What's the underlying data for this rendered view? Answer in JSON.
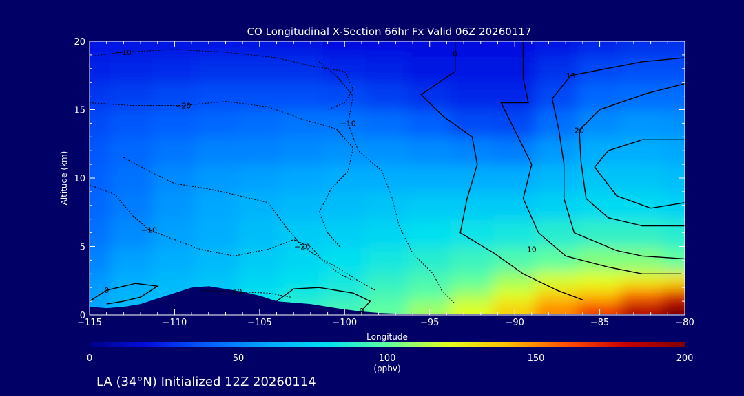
{
  "chart_data": {
    "type": "heatmap",
    "title": "CO Longitudinal X-Section 66hr  Fx Valid 06Z 20260117",
    "footer": "LA (34°N) Initialized 12Z 20260114",
    "xlabel": "Longitude",
    "ylabel": "Altitude (km)",
    "xlim": [
      -115,
      -80
    ],
    "ylim": [
      0,
      20
    ],
    "x_ticks": [
      -115,
      -110,
      -105,
      -100,
      -95,
      -90,
      -85,
      -80
    ],
    "x_tick_labels": [
      "−115",
      "−110",
      "−105",
      "−100",
      "−95",
      "−90",
      "−85",
      "−80"
    ],
    "y_ticks": [
      0,
      5,
      10,
      15,
      20
    ],
    "y_tick_labels": [
      "0",
      "5",
      "10",
      "15",
      "20"
    ],
    "colorbar": {
      "min": 0,
      "max": 200,
      "ticks": [
        0,
        50,
        100,
        150,
        200
      ],
      "tick_labels": [
        "0",
        "50",
        "100",
        "150",
        "200"
      ],
      "unit_label": "(ppbv)",
      "colors": [
        "#000088",
        "#0010e0",
        "#0060ff",
        "#00a8ff",
        "#00e0f0",
        "#60ffa0",
        "#e0ff20",
        "#ffc000",
        "#ff5000",
        "#c80000",
        "#800000"
      ]
    },
    "grid": false,
    "x_columns": [
      -115,
      -112.5,
      -110,
      -107.5,
      -105,
      -102.5,
      -100,
      -97.5,
      -95,
      -92.5,
      -90,
      -87.5,
      -85,
      -82.5,
      -80
    ],
    "y_rows": [
      0.5,
      1.5,
      2.5,
      4,
      6,
      8,
      10,
      12,
      14,
      16,
      18,
      19.8
    ],
    "co_ppbv": [
      [
        60,
        68,
        70,
        72,
        85,
        90,
        95,
        100,
        110,
        120,
        135,
        150,
        165,
        185,
        200
      ],
      [
        58,
        64,
        68,
        72,
        80,
        85,
        88,
        95,
        100,
        110,
        120,
        135,
        140,
        155,
        170
      ],
      [
        55,
        62,
        66,
        70,
        76,
        80,
        84,
        90,
        95,
        100,
        110,
        118,
        120,
        125,
        130
      ],
      [
        50,
        58,
        62,
        66,
        72,
        76,
        80,
        84,
        88,
        92,
        96,
        100,
        105,
        105,
        100
      ],
      [
        45,
        52,
        58,
        62,
        68,
        72,
        74,
        76,
        80,
        82,
        84,
        88,
        90,
        90,
        88
      ],
      [
        42,
        48,
        55,
        60,
        64,
        66,
        68,
        70,
        72,
        72,
        72,
        75,
        78,
        78,
        75
      ],
      [
        40,
        45,
        52,
        56,
        58,
        60,
        62,
        62,
        62,
        62,
        62,
        66,
        70,
        70,
        68
      ],
      [
        38,
        42,
        46,
        50,
        50,
        52,
        54,
        54,
        52,
        50,
        48,
        56,
        62,
        62,
        60
      ],
      [
        35,
        38,
        40,
        42,
        44,
        46,
        46,
        44,
        40,
        35,
        34,
        44,
        52,
        55,
        54
      ],
      [
        30,
        32,
        34,
        36,
        36,
        36,
        35,
        32,
        28,
        26,
        26,
        34,
        42,
        44,
        44
      ],
      [
        25,
        26,
        27,
        28,
        28,
        28,
        26,
        24,
        22,
        22,
        22,
        28,
        34,
        36,
        36
      ],
      [
        22,
        22,
        22,
        22,
        22,
        22,
        20,
        20,
        20,
        20,
        20,
        22,
        26,
        28,
        28
      ]
    ],
    "terrain_km": [
      [
        -115,
        0.6
      ],
      [
        -114,
        0.5
      ],
      [
        -113,
        0.6
      ],
      [
        -112,
        0.8
      ],
      [
        -111,
        1.2
      ],
      [
        -110,
        1.6
      ],
      [
        -109,
        2.0
      ],
      [
        -108,
        2.1
      ],
      [
        -107,
        1.9
      ],
      [
        -106,
        1.7
      ],
      [
        -105,
        1.4
      ],
      [
        -104,
        1.0
      ],
      [
        -103,
        0.9
      ],
      [
        -102,
        0.8
      ],
      [
        -101,
        0.6
      ],
      [
        -100,
        0.4
      ],
      [
        -99,
        0.25
      ],
      [
        -98,
        0.15
      ],
      [
        -97,
        0.1
      ],
      [
        -95,
        0.05
      ],
      [
        -80,
        0.05
      ]
    ],
    "contours": [
      {
        "label": "−10",
        "style": "dotted",
        "label_at": [
          -113,
          19.2
        ],
        "points": [
          [
            -115,
            18.9
          ],
          [
            -113,
            19.2
          ],
          [
            -110,
            19.4
          ],
          [
            -107,
            19.2
          ],
          [
            -104,
            18.8
          ],
          [
            -102,
            18.2
          ],
          [
            -100,
            17.8
          ],
          [
            -99.5,
            16.5
          ],
          [
            -100,
            15.5
          ],
          [
            -101,
            15.0
          ]
        ]
      },
      {
        "label": "−20",
        "style": "dotted",
        "label_at": [
          -109.5,
          15.3
        ],
        "points": [
          [
            -115,
            15.5
          ],
          [
            -112.5,
            15.3
          ],
          [
            -109.5,
            15.3
          ],
          [
            -107,
            15.6
          ],
          [
            -104.5,
            15.2
          ],
          [
            -102.5,
            14.3
          ],
          [
            -100.5,
            13.6
          ],
          [
            -99.5,
            12.2
          ],
          [
            -99.8,
            10.5
          ],
          [
            -100.8,
            9.2
          ],
          [
            -101.5,
            7.5
          ],
          [
            -101,
            6.0
          ],
          [
            -100.3,
            5.0
          ]
        ]
      },
      {
        "label": "−10",
        "style": "dotted",
        "label_at": [
          -99.8,
          14
        ],
        "points": [
          [
            -101.5,
            18.5
          ],
          [
            -100.5,
            17.5
          ],
          [
            -99.5,
            16
          ],
          [
            -99.8,
            14
          ],
          [
            -99.2,
            12
          ],
          [
            -97.8,
            10.5
          ],
          [
            -97.2,
            8.5
          ],
          [
            -96.8,
            6.5
          ],
          [
            -96,
            4.5
          ],
          [
            -94.8,
            3.0
          ],
          [
            -94.3,
            1.8
          ],
          [
            -93.5,
            0.8
          ]
        ]
      },
      {
        "label": "−10",
        "style": "dotted",
        "label_at": [
          -111.5,
          6.2
        ],
        "points": [
          [
            -115,
            9.5
          ],
          [
            -113.5,
            8.8
          ],
          [
            -112.5,
            7.3
          ],
          [
            -111.5,
            6.2
          ],
          [
            -110,
            5.5
          ],
          [
            -108.5,
            4.8
          ],
          [
            -106.5,
            4.3
          ],
          [
            -104.5,
            4.8
          ],
          [
            -103,
            5.5
          ],
          [
            -102,
            5.0
          ],
          [
            -101.3,
            4.0
          ],
          [
            -100.3,
            3.0
          ],
          [
            -99.5,
            2.5
          ]
        ]
      },
      {
        "label": "−20",
        "style": "dotted",
        "label_at": [
          -102.5,
          5.0
        ],
        "points": [
          [
            -113,
            11.5
          ],
          [
            -111.5,
            10.5
          ],
          [
            -110,
            9.6
          ],
          [
            -108,
            9.2
          ],
          [
            -106.5,
            8.8
          ],
          [
            -104.5,
            8.2
          ],
          [
            -103.5,
            6.5
          ],
          [
            -102.5,
            5.0
          ],
          [
            -101.5,
            4.2
          ],
          [
            -100.2,
            3.3
          ],
          [
            -99.2,
            2.5
          ],
          [
            -98.2,
            1.8
          ]
        ]
      },
      {
        "label": "−10",
        "style": "dotted",
        "label_at": [
          -106.5,
          1.7
        ],
        "points": [
          [
            -108.5,
            1.8
          ],
          [
            -106.5,
            1.7
          ],
          [
            -104.5,
            1.6
          ],
          [
            -103.2,
            1.3
          ]
        ]
      },
      {
        "label": "0",
        "style": "solid",
        "label_at": [
          -93.5,
          19.1
        ],
        "points": [
          [
            -93.5,
            20
          ],
          [
            -93.5,
            19.1
          ],
          [
            -93.5,
            17.8
          ],
          [
            -95.5,
            16.1
          ],
          [
            -94.2,
            14.5
          ],
          [
            -92.5,
            13.0
          ],
          [
            -92.2,
            11.0
          ],
          [
            -92.8,
            8.5
          ],
          [
            -93.2,
            6.0
          ],
          [
            -91.2,
            4.5
          ],
          [
            -89.5,
            3.0
          ],
          [
            -87.5,
            1.8
          ],
          [
            -86,
            1.1
          ]
        ]
      },
      {
        "label": "0",
        "style": "solid",
        "label_at": [
          -114,
          1.8
        ],
        "points": [
          [
            -115,
            1.0
          ],
          [
            -114,
            1.8
          ],
          [
            -112.3,
            2.3
          ],
          [
            -111,
            2.1
          ],
          [
            -112,
            1.3
          ],
          [
            -113,
            1.0
          ],
          [
            -114,
            0.8
          ]
        ]
      },
      {
        "label": "0",
        "style": "solid",
        "label_at": [
          -99,
          0.3
        ],
        "points": [
          [
            -104,
            1.0
          ],
          [
            -103,
            1.9
          ],
          [
            -101.5,
            2.0
          ],
          [
            -99.5,
            1.6
          ],
          [
            -98.5,
            1.0
          ],
          [
            -99,
            0.3
          ]
        ]
      },
      {
        "label": "10",
        "style": "solid",
        "label_at": [
          -89,
          4.8
        ],
        "points": [
          [
            -89.5,
            20
          ],
          [
            -89.5,
            17.3
          ],
          [
            -89.2,
            15.5
          ],
          [
            -90.8,
            15.5
          ],
          [
            -89.8,
            13.0
          ],
          [
            -89.0,
            11.0
          ],
          [
            -89.5,
            8.5
          ],
          [
            -88.6,
            6.0
          ],
          [
            -87,
            4.3
          ],
          [
            -84.5,
            3.5
          ],
          [
            -82.5,
            3.0
          ],
          [
            -80.2,
            3.0
          ]
        ]
      },
      {
        "label": "10",
        "style": "solid",
        "label_at": [
          -86.7,
          17.5
        ],
        "points": [
          [
            -80,
            18.8
          ],
          [
            -82.5,
            18.5
          ],
          [
            -86.7,
            17.5
          ],
          [
            -87.8,
            15.8
          ],
          [
            -87.4,
            13.5
          ],
          [
            -87.1,
            11.0
          ],
          [
            -87.1,
            8.5
          ],
          [
            -86.5,
            6.0
          ],
          [
            -84,
            4.7
          ],
          [
            -82.5,
            4.3
          ],
          [
            -80,
            4.1
          ]
        ]
      },
      {
        "label": "20",
        "style": "solid",
        "label_at": [
          -86.2,
          13.5
        ],
        "points": [
          [
            -80,
            16.9
          ],
          [
            -82.2,
            16.2
          ],
          [
            -85,
            15.0
          ],
          [
            -86.2,
            13.5
          ],
          [
            -86.1,
            11.2
          ],
          [
            -85.8,
            8.5
          ],
          [
            -84.5,
            7.1
          ],
          [
            -82.5,
            6.5
          ],
          [
            -80,
            6.5
          ]
        ]
      },
      {
        "label": "",
        "style": "solid",
        "label_at": null,
        "points": [
          [
            -80,
            12.8
          ],
          [
            -82.5,
            12.8
          ],
          [
            -84.5,
            12.0
          ],
          [
            -85.3,
            10.8
          ],
          [
            -84,
            8.7
          ],
          [
            -82,
            7.8
          ],
          [
            -80,
            8.2
          ]
        ]
      }
    ]
  }
}
